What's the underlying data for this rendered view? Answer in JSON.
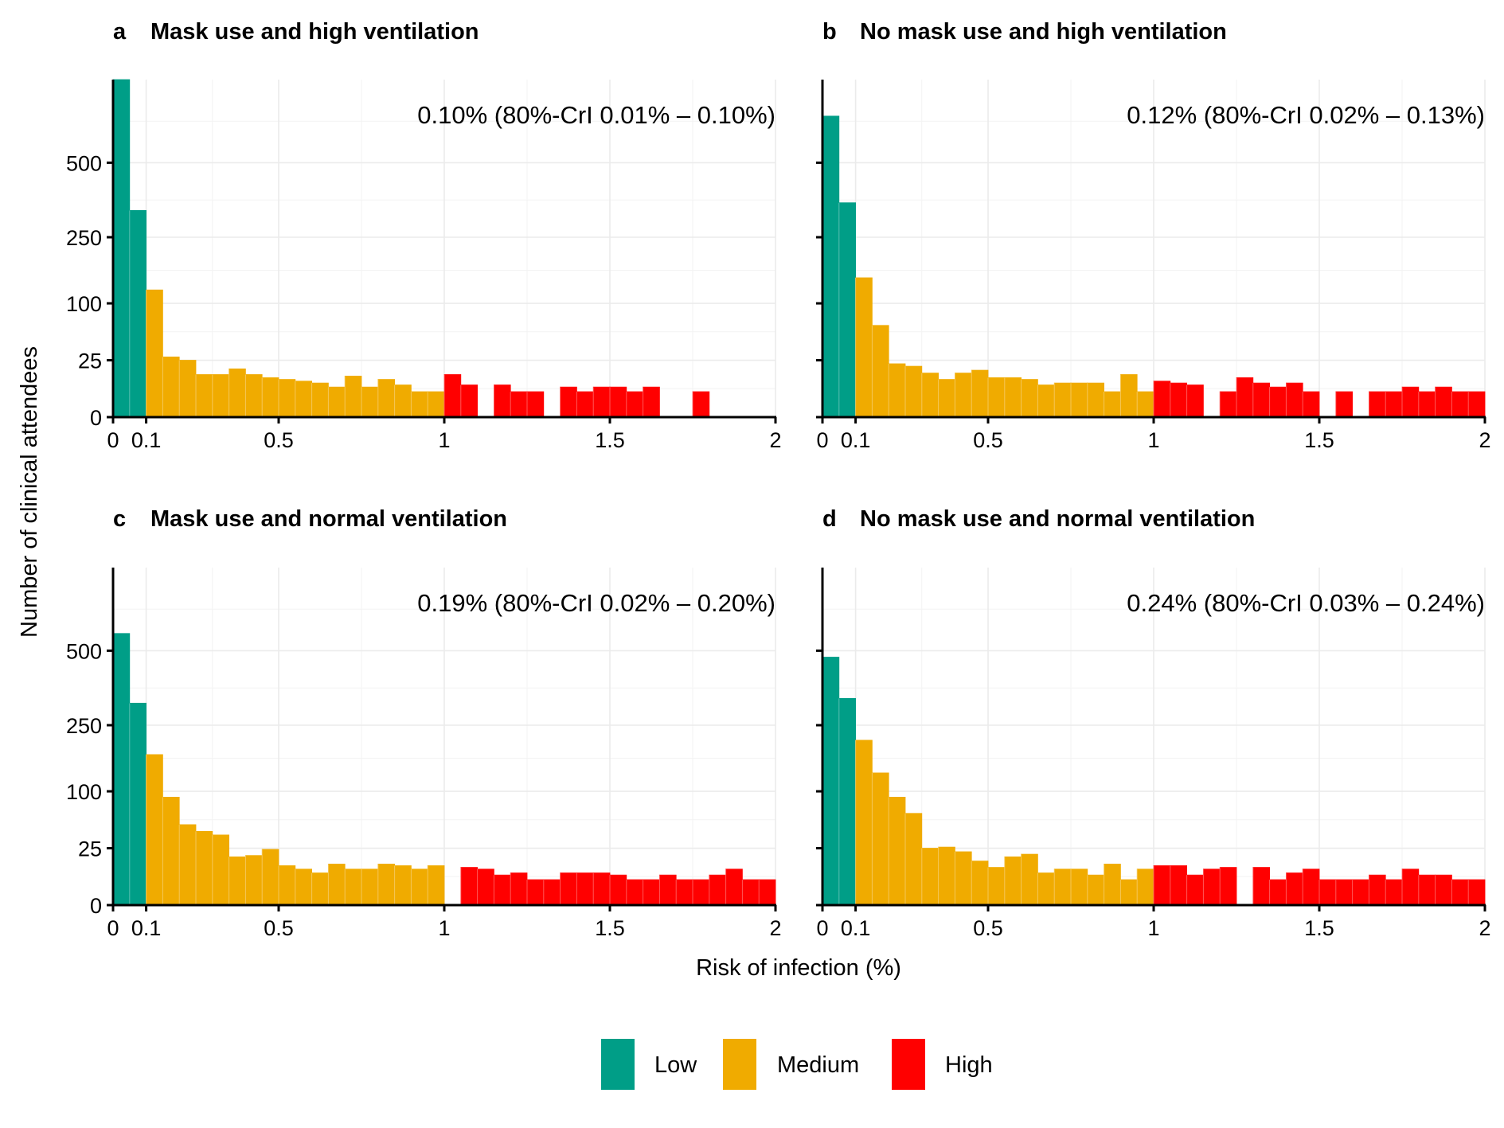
{
  "chart_data": {
    "type": "bar",
    "y_axis_label": "Number of clinical attendees",
    "x_axis_label": "Risk of infection (%)",
    "x_ticks": [
      "0",
      "0.1",
      "0.5",
      "1",
      "1.5",
      "2"
    ],
    "x_tick_values": [
      0,
      0.1,
      0.5,
      1,
      1.5,
      2
    ],
    "y_ticks": [
      "0",
      "25",
      "100",
      "250",
      "500"
    ],
    "y_tick_values": [
      0,
      25,
      100,
      250,
      500
    ],
    "y_scale": "sqrt",
    "xlim": [
      0,
      2
    ],
    "bin_width": 0.05,
    "bin_starts": [
      0,
      0.05,
      0.1,
      0.15,
      0.2,
      0.25,
      0.3,
      0.35,
      0.4,
      0.45,
      0.5,
      0.55,
      0.6,
      0.65,
      0.7,
      0.75,
      0.8,
      0.85,
      0.9,
      0.95,
      1,
      1.05,
      1.1,
      1.15,
      1.2,
      1.25,
      1.3,
      1.35,
      1.4,
      1.45,
      1.5,
      1.55,
      1.6,
      1.65,
      1.7,
      1.75,
      1.8,
      1.85,
      1.9,
      1.95
    ],
    "risk_thresholds": {
      "low_below": 0.1,
      "high_from": 1.0
    },
    "legend": [
      {
        "label": "Low",
        "color": "#009E87"
      },
      {
        "label": "Medium",
        "color": "#F0AB00"
      },
      {
        "label": "High",
        "color": "#FF0000"
      }
    ],
    "legend_position": "bottom",
    "panels": [
      {
        "letter": "a",
        "title": "Mask use and high ventilation",
        "annotation": "0.10% (80%-CrI 0.01% – 0.10%)",
        "values": [
          900,
          330,
          125,
          28,
          25,
          14,
          14,
          18,
          14,
          12,
          11,
          10,
          9,
          7,
          13,
          7,
          11,
          8,
          5,
          5,
          14,
          8,
          0,
          8,
          5,
          5,
          0,
          7,
          5,
          7,
          7,
          5,
          7,
          0,
          0,
          5,
          0,
          0,
          0,
          0
        ]
      },
      {
        "letter": "b",
        "title": "No mask use and high ventilation",
        "annotation": "0.12% (80%-CrI 0.02% – 0.13%)",
        "values": [
          700,
          355,
          150,
          65,
          22,
          20,
          15,
          11,
          15,
          17,
          12,
          12,
          11,
          8,
          9,
          9,
          9,
          5,
          14,
          5,
          10,
          9,
          8,
          0,
          5,
          12,
          9,
          7,
          9,
          5,
          0,
          5,
          0,
          5,
          5,
          7,
          5,
          7,
          5,
          5
        ]
      },
      {
        "letter": "c",
        "title": "Mask use and normal ventilation",
        "annotation": "0.19% (80%-CrI 0.02% – 0.20%)",
        "values": [
          570,
          315,
          175,
          90,
          50,
          42,
          38,
          18,
          19,
          24,
          12,
          10,
          8,
          13,
          10,
          10,
          13,
          12,
          10,
          12,
          0,
          11,
          10,
          7,
          8,
          5,
          5,
          8,
          8,
          8,
          7,
          5,
          5,
          7,
          5,
          5,
          7,
          10,
          5,
          5
        ]
      },
      {
        "letter": "d",
        "title": "No mask use and normal ventilation",
        "annotation": "0.24% (80%-CrI 0.03% – 0.24%)",
        "values": [
          475,
          330,
          210,
          135,
          90,
          65,
          25,
          26,
          22,
          15,
          11,
          18,
          20,
          8,
          10,
          10,
          7,
          13,
          5,
          10,
          12,
          12,
          7,
          10,
          11,
          0,
          11,
          5,
          8,
          10,
          5,
          5,
          5,
          7,
          5,
          10,
          7,
          7,
          5,
          5
        ]
      }
    ]
  }
}
